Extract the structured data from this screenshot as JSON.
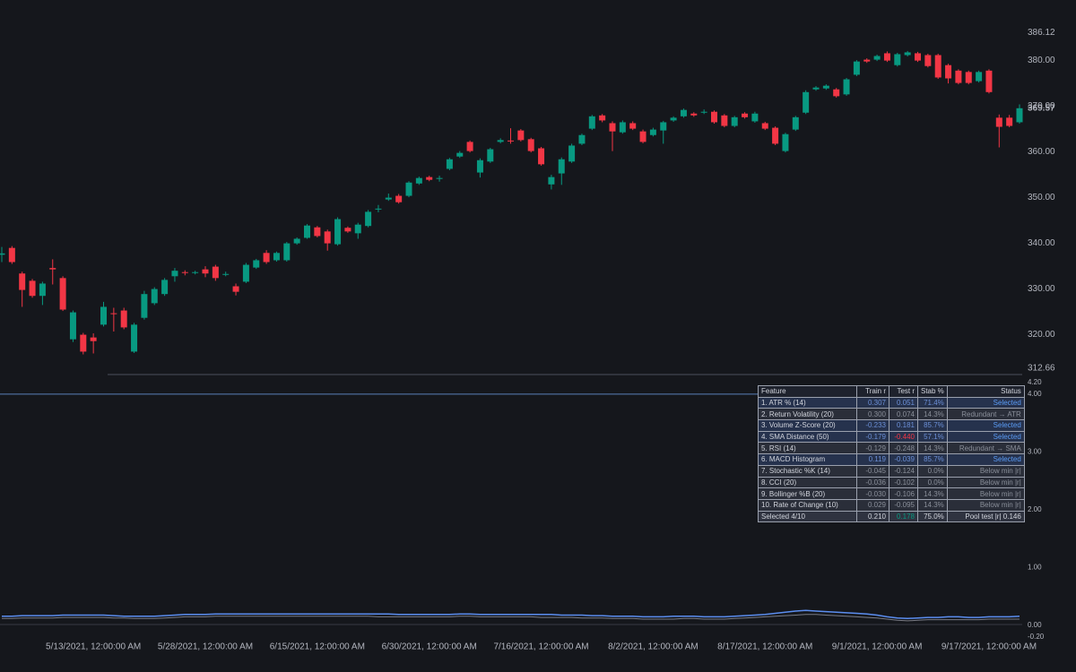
{
  "chart_data": [
    {
      "type": "candlestick",
      "categories": [
        null,
        null,
        null,
        null,
        null,
        null,
        null,
        null,
        null,
        "5/13/2021, 12:00:00 AM",
        null,
        null,
        null,
        null,
        null,
        null,
        null,
        null,
        null,
        null,
        "5/28/2021, 12:00:00 AM",
        null,
        null,
        null,
        null,
        null,
        null,
        null,
        null,
        null,
        null,
        "6/15/2021, 12:00:00 AM",
        null,
        null,
        null,
        null,
        null,
        null,
        null,
        null,
        null,
        null,
        "6/30/2021, 12:00:00 AM",
        null,
        null,
        null,
        null,
        null,
        null,
        null,
        null,
        null,
        null,
        "7/16/2021, 12:00:00 AM",
        null,
        null,
        null,
        null,
        null,
        null,
        null,
        null,
        null,
        null,
        "8/2/2021, 12:00:00 AM",
        null,
        null,
        null,
        null,
        null,
        null,
        null,
        null,
        null,
        null,
        "8/17/2021, 12:00:00 AM",
        null,
        null,
        null,
        null,
        null,
        null,
        null,
        null,
        null,
        null,
        "9/1/2021, 12:00:00 AM",
        null,
        null,
        null,
        null,
        null,
        null,
        null,
        null,
        null,
        null,
        "9/17/2021, 12:00:00 AM",
        null,
        null,
        null
      ],
      "open": [
        337.5,
        339.0,
        333.4,
        331.8,
        328.5,
        334.6,
        332.4,
        319.0,
        320.0,
        319.4,
        322.2,
        324.7,
        325.3,
        316.3,
        323.7,
        326.9,
        328.9,
        332.8,
        333.7,
        333.5,
        334.3,
        334.9,
        333.1,
        330.6,
        331.6,
        334.7,
        337.9,
        336.3,
        336.3,
        340.0,
        341.2,
        343.5,
        342.6,
        339.8,
        343.4,
        342.2,
        343.8,
        347.4,
        349.6,
        350.4,
        350.4,
        353.1,
        354.5,
        354.1,
        356.3,
        359.0,
        362.2,
        355.5,
        357.9,
        362.2,
        362.5,
        364.7,
        362.8,
        360.8,
        352.9,
        355.3,
        357.9,
        361.8,
        365.1,
        368.0,
        366.3,
        364.3,
        366.3,
        364.5,
        363.7,
        364.7,
        366.9,
        367.8,
        368.4,
        368.6,
        368.8,
        368.0,
        365.7,
        368.4,
        366.7,
        366.3,
        365.3,
        360.2,
        364.9,
        368.6,
        373.7,
        373.9,
        373.7,
        372.6,
        376.9,
        380.2,
        380.2,
        381.6,
        379.0,
        381.2,
        381.6,
        381.2,
        381.2,
        379.0,
        377.8,
        377.5,
        375.5,
        377.8,
        367.5,
        367.5,
        366.5
      ],
      "high": [
        339.2,
        339.4,
        333.8,
        332.2,
        331.6,
        336.5,
        332.8,
        325.3,
        320.4,
        320.3,
        327.2,
        325.9,
        325.9,
        322.6,
        329.6,
        330.4,
        332.4,
        334.6,
        334.1,
        334.0,
        335.0,
        335.3,
        333.8,
        331.2,
        335.7,
        336.6,
        338.5,
        338.2,
        340.3,
        341.3,
        344.2,
        343.8,
        343.0,
        345.7,
        343.7,
        344.5,
        347.3,
        348.4,
        350.9,
        350.8,
        353.6,
        354.6,
        354.8,
        354.8,
        358.7,
        360.2,
        362.5,
        358.6,
        360.9,
        363.0,
        365.2,
        365.0,
        363.1,
        361.1,
        355.0,
        358.8,
        361.8,
        364.0,
        368.1,
        368.3,
        366.7,
        366.9,
        366.7,
        364.9,
        365.3,
        366.8,
        367.8,
        369.5,
        368.7,
        369.3,
        369.1,
        368.3,
        367.9,
        368.7,
        368.8,
        366.6,
        365.6,
        364.2,
        367.9,
        373.5,
        374.4,
        374.8,
        374.0,
        376.2,
        380.1,
        380.5,
        381.3,
        382.0,
        381.7,
        382.1,
        381.9,
        381.5,
        381.5,
        379.3,
        378.1,
        377.8,
        377.8,
        378.1,
        368.2,
        368.1,
        370.4
      ],
      "low": [
        335.9,
        335.5,
        326.1,
        328.1,
        326.5,
        331.0,
        325.2,
        318.4,
        315.7,
        315.9,
        321.8,
        320.7,
        321.2,
        316.0,
        323.3,
        326.5,
        328.5,
        331.6,
        333.0,
        333.2,
        332.6,
        331.8,
        332.8,
        328.6,
        331.3,
        334.4,
        335.5,
        336.0,
        336.0,
        339.7,
        341.0,
        341.3,
        338.4,
        339.5,
        342.3,
        341.0,
        343.5,
        346.8,
        349.3,
        348.7,
        350.1,
        352.8,
        353.6,
        353.5,
        356.0,
        358.7,
        359.9,
        354.4,
        357.6,
        361.9,
        361.8,
        362.3,
        359.9,
        357.0,
        351.8,
        352.8,
        357.6,
        361.5,
        364.8,
        366.5,
        360.2,
        364.0,
        364.8,
        361.9,
        363.4,
        361.8,
        366.6,
        367.5,
        367.7,
        368.3,
        366.2,
        365.4,
        365.4,
        367.3,
        366.4,
        364.8,
        361.5,
        359.9,
        364.6,
        368.3,
        373.4,
        373.6,
        371.9,
        372.3,
        376.6,
        379.5,
        379.9,
        379.7,
        378.7,
        380.9,
        379.7,
        378.5,
        376.0,
        375.0,
        374.8,
        374.8,
        375.2,
        372.8,
        361.0,
        365.4,
        366.2
      ],
      "close": [
        337.8,
        335.9,
        329.8,
        328.5,
        331.2,
        334.3,
        325.5,
        324.9,
        316.3,
        318.6,
        326.1,
        324.5,
        321.6,
        322.2,
        328.9,
        330.0,
        332.0,
        334.0,
        333.5,
        333.7,
        333.4,
        332.4,
        333.3,
        329.4,
        335.3,
        336.3,
        335.9,
        337.9,
        340.0,
        341.0,
        343.9,
        341.6,
        340.0,
        345.3,
        342.6,
        344.1,
        346.9,
        347.6,
        350.0,
        349.0,
        353.3,
        354.3,
        353.9,
        354.3,
        358.4,
        359.8,
        360.2,
        358.2,
        360.6,
        362.6,
        362.3,
        362.6,
        360.2,
        357.3,
        354.5,
        358.4,
        361.4,
        363.7,
        367.8,
        366.9,
        364.5,
        366.5,
        365.1,
        362.2,
        364.9,
        366.5,
        367.5,
        369.2,
        368.0,
        368.8,
        366.5,
        365.7,
        367.6,
        367.6,
        368.4,
        365.1,
        361.8,
        363.9,
        367.6,
        373.1,
        374.1,
        374.5,
        372.2,
        375.9,
        379.8,
        379.8,
        381.0,
        380.0,
        381.4,
        381.8,
        380.0,
        378.8,
        376.3,
        376.1,
        375.1,
        375.1,
        377.5,
        373.1,
        365.5,
        365.7,
        369.57
      ],
      "up_color": "#089981",
      "down_color": "#f23645",
      "ylim": [
        312.66,
        386.12
      ],
      "yticks": [
        312.66,
        {
          "value": 320,
          "label": "320.00"
        },
        {
          "value": 330,
          "label": "330.00"
        },
        {
          "value": 340,
          "label": "340.00"
        },
        {
          "value": 350,
          "label": "350.00"
        },
        {
          "value": 360,
          "label": "360.00"
        },
        {
          "value": 370,
          "label": "370.00"
        },
        {
          "value": 380,
          "label": "380.00"
        },
        386.12
      ],
      "last_price_label": true
    },
    {
      "type": "line",
      "series": [
        {
          "color": "#5b8def",
          "values": [
            0.16,
            0.16,
            0.17,
            0.17,
            0.17,
            0.17,
            0.18,
            0.18,
            0.18,
            0.18,
            0.18,
            0.17,
            0.16,
            0.16,
            0.16,
            0.16,
            0.17,
            0.18,
            0.19,
            0.19,
            0.19,
            0.2,
            0.2,
            0.2,
            0.2,
            0.2,
            0.2,
            0.2,
            0.2,
            0.2,
            0.2,
            0.2,
            0.2,
            0.2,
            0.2,
            0.2,
            0.2,
            0.2,
            0.2,
            0.19,
            0.19,
            0.19,
            0.19,
            0.19,
            0.19,
            0.2,
            0.2,
            0.19,
            0.19,
            0.19,
            0.19,
            0.19,
            0.19,
            0.19,
            0.19,
            0.18,
            0.18,
            0.18,
            0.17,
            0.17,
            0.16,
            0.16,
            0.16,
            0.15,
            0.15,
            0.15,
            0.16,
            0.16,
            0.16,
            0.15,
            0.15,
            0.15,
            0.16,
            0.17,
            0.18,
            0.19,
            0.21,
            0.23,
            0.25,
            0.26,
            0.25,
            0.24,
            0.23,
            0.22,
            0.21,
            0.2,
            0.18,
            0.15,
            0.13,
            0.12,
            0.13,
            0.14,
            0.14,
            0.15,
            0.15,
            0.14,
            0.14,
            0.15,
            0.15,
            0.15,
            0.16
          ]
        },
        {
          "color": "#787b86",
          "values": [
            0.12,
            0.12,
            0.13,
            0.13,
            0.13,
            0.13,
            0.14,
            0.14,
            0.14,
            0.14,
            0.14,
            0.13,
            0.13,
            0.12,
            0.12,
            0.12,
            0.13,
            0.14,
            0.15,
            0.15,
            0.15,
            0.16,
            0.16,
            0.16,
            0.16,
            0.16,
            0.16,
            0.16,
            0.16,
            0.16,
            0.16,
            0.16,
            0.16,
            0.16,
            0.16,
            0.16,
            0.16,
            0.15,
            0.15,
            0.15,
            0.15,
            0.15,
            0.15,
            0.15,
            0.15,
            0.16,
            0.16,
            0.15,
            0.15,
            0.15,
            0.15,
            0.15,
            0.15,
            0.14,
            0.14,
            0.14,
            0.14,
            0.13,
            0.13,
            0.13,
            0.12,
            0.12,
            0.12,
            0.11,
            0.11,
            0.11,
            0.11,
            0.12,
            0.12,
            0.11,
            0.11,
            0.11,
            0.12,
            0.13,
            0.14,
            0.15,
            0.16,
            0.17,
            0.18,
            0.19,
            0.19,
            0.18,
            0.17,
            0.16,
            0.15,
            0.14,
            0.13,
            0.11,
            0.09,
            0.08,
            0.09,
            0.1,
            0.1,
            0.1,
            0.1,
            0.1,
            0.1,
            0.11,
            0.11,
            0.11,
            0.11
          ]
        }
      ],
      "hline": 4,
      "hline_color": "#5a7fb8",
      "ylim": [
        -0.2,
        4.2
      ],
      "yticks": [
        {
          "value": -0.2,
          "label": "-0.20"
        },
        {
          "value": 0,
          "label": "0.00"
        },
        {
          "value": 1,
          "label": "1.00"
        },
        {
          "value": 2,
          "label": "2.00"
        },
        {
          "value": 3,
          "label": "3.00"
        },
        {
          "value": 4,
          "label": "4.00"
        },
        {
          "value": 4.2,
          "label": "4.20"
        }
      ]
    }
  ],
  "table": {
    "header": [
      "Feature",
      "Train r",
      "Test r",
      "Stab %",
      "Status"
    ],
    "rows": [
      [
        "1. ATR % (14)",
        "0.307",
        "0.051",
        "71.4%",
        "Selected"
      ],
      [
        "2. Return Volatility (20)",
        "0.300",
        "0.074",
        "14.3%",
        "Redundant → ATR"
      ],
      [
        "3. Volume Z-Score (20)",
        "-0.233",
        "0.181",
        "85.7%",
        "Selected"
      ],
      [
        "4. SMA Distance (50)",
        "-0.179",
        "-0.440",
        "57.1%",
        "Selected"
      ],
      [
        "5. RSI (14)",
        "-0.129",
        "-0.248",
        "14.3%",
        "Redundant → SMA"
      ],
      [
        "6. MACD Histogram",
        "0.119",
        "-0.039",
        "85.7%",
        "Selected"
      ],
      [
        "7. Stochastic %K (14)",
        "-0.045",
        "-0.124",
        "0.0%",
        "Below min |r|"
      ],
      [
        "8. CCI (20)",
        "-0.036",
        "-0.102",
        "0.0%",
        "Below min |r|"
      ],
      [
        "9. Bollinger %B (20)",
        "-0.030",
        "-0.106",
        "14.3%",
        "Below min |r|"
      ],
      [
        "10. Rate of Change (10)",
        "0.029",
        "-0.095",
        "14.3%",
        "Below min |r|"
      ],
      [
        "Selected 4/10",
        "0.210",
        "0.178",
        "75.0%",
        "Pool test |r| 0.146"
      ]
    ]
  }
}
